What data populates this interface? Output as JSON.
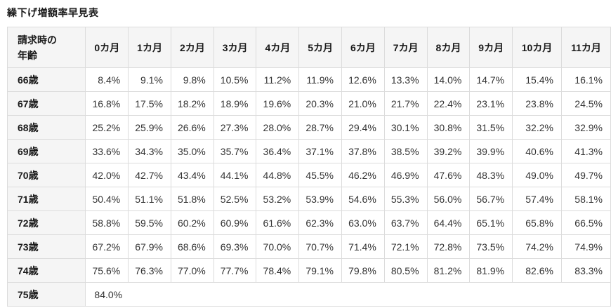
{
  "page": {
    "title": "繰下げ増額率早見表"
  },
  "table": {
    "corner_header_line1": "請求時の",
    "corner_header_line2": "年齢",
    "month_headers": [
      "0カ月",
      "1カ月",
      "2カ月",
      "3カ月",
      "4カ月",
      "5カ月",
      "6カ月",
      "7カ月",
      "8カ月",
      "9カ月",
      "10カ月",
      "11カ月"
    ],
    "rows": [
      {
        "age": "66歳",
        "values": [
          "8.4%",
          "9.1%",
          "9.8%",
          "10.5%",
          "11.2%",
          "11.9%",
          "12.6%",
          "13.3%",
          "14.0%",
          "14.7%",
          "15.4%",
          "16.1%"
        ]
      },
      {
        "age": "67歳",
        "values": [
          "16.8%",
          "17.5%",
          "18.2%",
          "18.9%",
          "19.6%",
          "20.3%",
          "21.0%",
          "21.7%",
          "22.4%",
          "23.1%",
          "23.8%",
          "24.5%"
        ]
      },
      {
        "age": "68歳",
        "values": [
          "25.2%",
          "25.9%",
          "26.6%",
          "27.3%",
          "28.0%",
          "28.7%",
          "29.4%",
          "30.1%",
          "30.8%",
          "31.5%",
          "32.2%",
          "32.9%"
        ]
      },
      {
        "age": "69歳",
        "values": [
          "33.6%",
          "34.3%",
          "35.0%",
          "35.7%",
          "36.4%",
          "37.1%",
          "37.8%",
          "38.5%",
          "39.2%",
          "39.9%",
          "40.6%",
          "41.3%"
        ]
      },
      {
        "age": "70歳",
        "values": [
          "42.0%",
          "42.7%",
          "43.4%",
          "44.1%",
          "44.8%",
          "45.5%",
          "46.2%",
          "46.9%",
          "47.6%",
          "48.3%",
          "49.0%",
          "49.7%"
        ]
      },
      {
        "age": "71歳",
        "values": [
          "50.4%",
          "51.1%",
          "51.8%",
          "52.5%",
          "53.2%",
          "53.9%",
          "54.6%",
          "55.3%",
          "56.0%",
          "56.7%",
          "57.4%",
          "58.1%"
        ]
      },
      {
        "age": "72歳",
        "values": [
          "58.8%",
          "59.5%",
          "60.2%",
          "60.9%",
          "61.6%",
          "62.3%",
          "63.0%",
          "63.7%",
          "64.4%",
          "65.1%",
          "65.8%",
          "66.5%"
        ]
      },
      {
        "age": "73歳",
        "values": [
          "67.2%",
          "67.9%",
          "68.6%",
          "69.3%",
          "70.0%",
          "70.7%",
          "71.4%",
          "72.1%",
          "72.8%",
          "73.5%",
          "74.2%",
          "74.9%"
        ]
      },
      {
        "age": "74歳",
        "values": [
          "75.6%",
          "76.3%",
          "77.0%",
          "77.7%",
          "78.4%",
          "79.1%",
          "79.8%",
          "80.5%",
          "81.2%",
          "81.9%",
          "82.6%",
          "83.3%"
        ]
      },
      {
        "age": "75歳",
        "values": [
          "84.0%"
        ],
        "span_all": true
      }
    ]
  },
  "chart_data": {
    "type": "table",
    "title": "繰下げ増額率早見表",
    "row_axis_label": "請求時の年齢",
    "unit": "%",
    "columns": [
      "0カ月",
      "1カ月",
      "2カ月",
      "3カ月",
      "4カ月",
      "5カ月",
      "6カ月",
      "7カ月",
      "8カ月",
      "9カ月",
      "10カ月",
      "11カ月"
    ],
    "row_labels": [
      "66歳",
      "67歳",
      "68歳",
      "69歳",
      "70歳",
      "71歳",
      "72歳",
      "73歳",
      "74歳",
      "75歳"
    ],
    "values_percent": [
      [
        8.4,
        9.1,
        9.8,
        10.5,
        11.2,
        11.9,
        12.6,
        13.3,
        14.0,
        14.7,
        15.4,
        16.1
      ],
      [
        16.8,
        17.5,
        18.2,
        18.9,
        19.6,
        20.3,
        21.0,
        21.7,
        22.4,
        23.1,
        23.8,
        24.5
      ],
      [
        25.2,
        25.9,
        26.6,
        27.3,
        28.0,
        28.7,
        29.4,
        30.1,
        30.8,
        31.5,
        32.2,
        32.9
      ],
      [
        33.6,
        34.3,
        35.0,
        35.7,
        36.4,
        37.1,
        37.8,
        38.5,
        39.2,
        39.9,
        40.6,
        41.3
      ],
      [
        42.0,
        42.7,
        43.4,
        44.1,
        44.8,
        45.5,
        46.2,
        46.9,
        47.6,
        48.3,
        49.0,
        49.7
      ],
      [
        50.4,
        51.1,
        51.8,
        52.5,
        53.2,
        53.9,
        54.6,
        55.3,
        56.0,
        56.7,
        57.4,
        58.1
      ],
      [
        58.8,
        59.5,
        60.2,
        60.9,
        61.6,
        62.3,
        63.0,
        63.7,
        64.4,
        65.1,
        65.8,
        66.5
      ],
      [
        67.2,
        67.9,
        68.6,
        69.3,
        70.0,
        70.7,
        71.4,
        72.1,
        72.8,
        73.5,
        74.2,
        74.9
      ],
      [
        75.6,
        76.3,
        77.0,
        77.7,
        78.4,
        79.1,
        79.8,
        80.5,
        81.2,
        81.9,
        82.6,
        83.3
      ],
      [
        84.0
      ]
    ]
  },
  "colors": {
    "header_bg": "#f5f5f5",
    "border": "#dcdcdc",
    "data_text": "#333333",
    "header_text": "#1a1a1a"
  }
}
